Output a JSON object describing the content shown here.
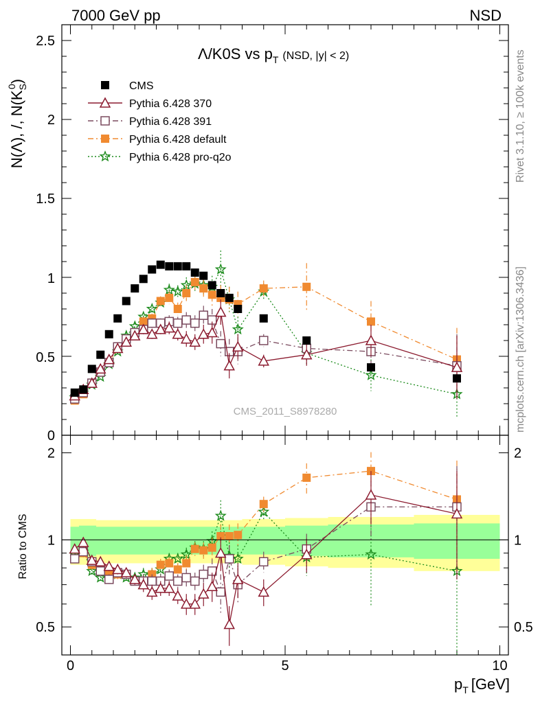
{
  "header": {
    "left": "7000 GeV pp",
    "right": "NSD"
  },
  "title": {
    "main": "Λ/K0S vs p",
    "sub": "T",
    "suffix": "(NSD, |y| < 2)"
  },
  "side_labels": {
    "rivet": "Rivet 3.1.10, ≥ 100k events",
    "mcplots": "mcplots.cern.ch [arXiv:1306.3436]"
  },
  "watermark": "CMS_2011_S8978280",
  "axes": {
    "main_ylabel": "N(Λ), /, N(K",
    "main_ylabel_sub": "S",
    "main_ylabel_sup": "0",
    "main_ylabel_end": ")",
    "ratio_ylabel": "Ratio to CMS",
    "xlabel": "p",
    "xlabel_sub": "T",
    "xlabel_unit": "[GeV]",
    "x_ticks": [
      "0",
      "5",
      "10"
    ],
    "main_y_ticks": [
      "0",
      "0.5",
      "1",
      "1.5",
      "2",
      "2.5"
    ],
    "ratio_y_ticks": [
      "0.5",
      "1",
      "2"
    ],
    "ratio_y_ticks_right": [
      "0.5",
      "1",
      "2"
    ]
  },
  "legend": [
    {
      "label": "CMS",
      "color": "#000000",
      "marker": "square-filled",
      "line": "none"
    },
    {
      "label": "Pythia 6.428 370",
      "color": "#8b1a2e",
      "marker": "triangle-open",
      "line": "solid"
    },
    {
      "label": "Pythia 6.428 391",
      "color": "#7a4a5e",
      "marker": "square-open",
      "line": "dashdot"
    },
    {
      "label": "Pythia 6.428 default",
      "color": "#f08a30",
      "marker": "square-filled",
      "line": "dashdot"
    },
    {
      "label": "Pythia 6.428 pro-q2o",
      "color": "#1a8a1a",
      "marker": "star",
      "line": "dotted"
    }
  ],
  "chart_data": {
    "type": "scatter",
    "xlim": [
      -0.2,
      10.2
    ],
    "ylim_main": [
      0,
      2.6
    ],
    "ylim_ratio": [
      0.4,
      2.3
    ],
    "ratio_log_scale": true,
    "x": [
      0.1,
      0.3,
      0.5,
      0.7,
      0.9,
      1.1,
      1.3,
      1.5,
      1.7,
      1.9,
      2.1,
      2.3,
      2.5,
      2.7,
      2.9,
      3.1,
      3.3,
      3.5,
      3.7,
      3.9,
      4.5,
      5.5,
      7.0,
      9.0
    ],
    "x_halfwidth": [
      0.1,
      0.1,
      0.1,
      0.1,
      0.1,
      0.1,
      0.1,
      0.1,
      0.1,
      0.1,
      0.1,
      0.1,
      0.1,
      0.1,
      0.1,
      0.1,
      0.1,
      0.1,
      0.1,
      0.1,
      0.5,
      0.5,
      1.0,
      1.0
    ],
    "series": [
      {
        "name": "CMS",
        "values": [
          0.27,
          0.29,
          0.42,
          0.51,
          0.64,
          0.74,
          0.85,
          0.93,
          0.99,
          1.05,
          1.08,
          1.07,
          1.07,
          1.07,
          1.03,
          1.01,
          0.95,
          0.9,
          0.87,
          0.8,
          0.74,
          0.6,
          0.43,
          0.36
        ],
        "errors": [
          0.01,
          0.01,
          0.01,
          0.01,
          0.01,
          0.01,
          0.01,
          0.01,
          0.01,
          0.01,
          0.01,
          0.01,
          0.01,
          0.01,
          0.01,
          0.01,
          0.01,
          0.01,
          0.01,
          0.01,
          0.01,
          0.02,
          0.02,
          0.02
        ]
      },
      {
        "name": "Pythia 6.428 370",
        "values": [
          0.25,
          0.29,
          0.33,
          0.42,
          0.48,
          0.55,
          0.59,
          0.63,
          0.67,
          0.64,
          0.67,
          0.68,
          0.64,
          0.61,
          0.59,
          0.64,
          0.65,
          0.78,
          0.44,
          0.56,
          0.47,
          0.51,
          0.6,
          0.43
        ],
        "errors": [
          0.01,
          0.01,
          0.01,
          0.01,
          0.01,
          0.02,
          0.02,
          0.02,
          0.03,
          0.03,
          0.03,
          0.04,
          0.04,
          0.05,
          0.05,
          0.06,
          0.07,
          0.08,
          0.08,
          0.08,
          0.04,
          0.07,
          0.1,
          0.2
        ],
        "ratio": [
          0.93,
          0.98,
          0.85,
          0.84,
          0.81,
          0.79,
          0.77,
          0.73,
          0.7,
          0.66,
          0.68,
          0.68,
          0.64,
          0.6,
          0.6,
          0.65,
          0.69,
          0.9,
          0.51,
          0.73,
          0.66,
          0.89,
          1.43,
          1.23
        ],
        "ratio_errors": [
          0.03,
          0.03,
          0.03,
          0.03,
          0.03,
          0.03,
          0.03,
          0.03,
          0.04,
          0.04,
          0.04,
          0.04,
          0.04,
          0.05,
          0.05,
          0.06,
          0.08,
          0.12,
          0.08,
          0.1,
          0.07,
          0.12,
          0.3,
          0.5
        ]
      },
      {
        "name": "Pythia 6.428 391",
        "values": [
          0.23,
          0.27,
          0.33,
          0.4,
          0.46,
          0.56,
          0.61,
          0.65,
          0.67,
          0.71,
          0.71,
          0.72,
          0.71,
          0.73,
          0.71,
          0.76,
          0.73,
          0.58,
          0.53,
          0.53,
          0.6,
          0.55,
          0.53,
          0.44
        ],
        "errors": [
          0.01,
          0.01,
          0.01,
          0.01,
          0.01,
          0.02,
          0.02,
          0.02,
          0.03,
          0.03,
          0.03,
          0.04,
          0.04,
          0.05,
          0.05,
          0.06,
          0.07,
          0.08,
          0.08,
          0.08,
          0.04,
          0.07,
          0.1,
          0.2
        ],
        "ratio": [
          0.86,
          0.91,
          0.84,
          0.78,
          0.73,
          0.77,
          0.76,
          0.72,
          0.72,
          0.72,
          0.72,
          0.75,
          0.72,
          0.74,
          0.72,
          0.76,
          0.78,
          0.66,
          0.86,
          0.7,
          0.84,
          0.93,
          1.3,
          1.3
        ],
        "ratio_errors": [
          0.03,
          0.03,
          0.03,
          0.03,
          0.03,
          0.03,
          0.03,
          0.03,
          0.04,
          0.04,
          0.04,
          0.04,
          0.04,
          0.05,
          0.05,
          0.06,
          0.08,
          0.1,
          0.1,
          0.1,
          0.07,
          0.12,
          0.3,
          0.5
        ]
      },
      {
        "name": "Pythia 6.428 default",
        "values": [
          0.22,
          0.26,
          0.33,
          0.4,
          0.46,
          0.55,
          0.61,
          0.65,
          0.72,
          0.74,
          0.85,
          0.87,
          0.8,
          0.9,
          0.97,
          0.93,
          0.89,
          0.87,
          0.86,
          0.83,
          0.93,
          0.94,
          0.72,
          0.48
        ],
        "errors": [
          0.01,
          0.01,
          0.01,
          0.01,
          0.01,
          0.02,
          0.02,
          0.02,
          0.03,
          0.03,
          0.03,
          0.04,
          0.04,
          0.05,
          0.05,
          0.06,
          0.07,
          0.08,
          0.08,
          0.08,
          0.05,
          0.15,
          0.13,
          0.2
        ],
        "ratio": [
          0.86,
          0.9,
          0.82,
          0.79,
          0.77,
          0.76,
          0.76,
          0.72,
          0.72,
          0.76,
          0.82,
          0.83,
          0.79,
          0.83,
          0.93,
          0.92,
          0.94,
          1.03,
          1.03,
          1.04,
          1.33,
          1.64,
          1.73,
          1.38
        ],
        "ratio_errors": [
          0.03,
          0.03,
          0.03,
          0.03,
          0.03,
          0.03,
          0.03,
          0.03,
          0.04,
          0.04,
          0.04,
          0.04,
          0.04,
          0.05,
          0.05,
          0.06,
          0.08,
          0.1,
          0.1,
          0.1,
          0.08,
          0.2,
          0.28,
          0.5
        ]
      },
      {
        "name": "Pythia 6.428 pro-q2o",
        "values": [
          0.24,
          0.27,
          0.32,
          0.37,
          0.45,
          0.53,
          0.63,
          0.69,
          0.75,
          0.8,
          0.84,
          0.92,
          0.91,
          0.95,
          0.96,
          0.95,
          0.94,
          1.05,
          0.86,
          0.67,
          0.91,
          0.52,
          0.38,
          0.26
        ],
        "errors": [
          0.01,
          0.01,
          0.01,
          0.01,
          0.01,
          0.02,
          0.02,
          0.02,
          0.03,
          0.03,
          0.03,
          0.04,
          0.04,
          0.05,
          0.05,
          0.06,
          0.07,
          0.12,
          0.08,
          0.08,
          0.05,
          0.07,
          0.1,
          0.15
        ],
        "ratio": [
          0.89,
          0.91,
          0.78,
          0.74,
          0.74,
          0.76,
          0.74,
          0.74,
          0.76,
          0.76,
          0.79,
          0.86,
          0.86,
          0.89,
          0.94,
          0.93,
          0.99,
          1.21,
          0.88,
          0.86,
          1.25,
          0.87,
          0.89,
          0.78
        ],
        "ratio_errors": [
          0.03,
          0.03,
          0.03,
          0.03,
          0.03,
          0.03,
          0.03,
          0.03,
          0.04,
          0.04,
          0.04,
          0.04,
          0.04,
          0.05,
          0.05,
          0.06,
          0.08,
          0.16,
          0.1,
          0.1,
          0.08,
          0.12,
          0.3,
          0.5
        ]
      }
    ],
    "bands": {
      "yellow_rel": [
        0.18,
        0.18,
        0.18,
        0.17,
        0.17,
        0.17,
        0.17,
        0.17,
        0.17,
        0.17,
        0.17,
        0.17,
        0.17,
        0.17,
        0.17,
        0.17,
        0.17,
        0.17,
        0.17,
        0.17,
        0.18,
        0.19,
        0.2,
        0.22
      ],
      "green_rel": [
        0.11,
        0.12,
        0.12,
        0.11,
        0.11,
        0.11,
        0.11,
        0.11,
        0.11,
        0.11,
        0.11,
        0.11,
        0.11,
        0.11,
        0.11,
        0.11,
        0.11,
        0.11,
        0.11,
        0.11,
        0.11,
        0.12,
        0.13,
        0.14
      ]
    }
  }
}
